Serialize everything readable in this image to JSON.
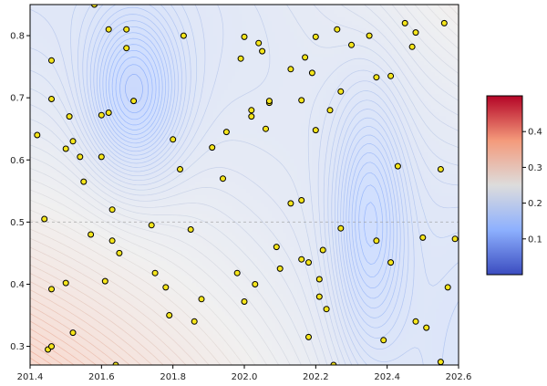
{
  "chart_data": {
    "type": "contour",
    "title": "",
    "xlabel": "",
    "ylabel": "",
    "xlim": [
      201.4,
      202.6
    ],
    "ylim": [
      0.27,
      0.85
    ],
    "x_ticks": [
      201.4,
      201.6,
      201.8,
      202.0,
      202.2,
      202.4,
      202.6
    ],
    "x_tick_labels": [
      "201.4",
      "201.6",
      "201.8",
      "202.0",
      "202.2",
      "202.4",
      "202.6"
    ],
    "y_ticks": [
      0.3,
      0.4,
      0.5,
      0.6,
      0.7,
      0.8
    ],
    "y_tick_labels": [
      "0.3",
      "0.4",
      "0.5",
      "0.6",
      "0.7",
      "0.8"
    ],
    "reference_line_y": 0.5,
    "colormap": "coolwarm",
    "colorbar": {
      "range": [
        0.0,
        0.5
      ],
      "ticks": [
        0.1,
        0.2,
        0.3,
        0.4
      ],
      "tick_labels": [
        "0.1",
        "0.2",
        "0.3",
        "0.4"
      ]
    },
    "field_sources": [
      {
        "x": 201.69,
        "y": 0.702,
        "strength": -0.09,
        "sx": 0.09,
        "sy": 0.09
      },
      {
        "x": 202.35,
        "y": 0.5,
        "strength": -0.07,
        "sx": 0.07,
        "sy": 0.14
      }
    ],
    "scatter_points": [
      [
        201.45,
        0.295
      ],
      [
        201.46,
        0.3
      ],
      [
        201.46,
        0.392
      ],
      [
        201.44,
        0.505
      ],
      [
        201.42,
        0.64
      ],
      [
        201.46,
        0.698
      ],
      [
        201.46,
        0.76
      ],
      [
        201.5,
        0.402
      ],
      [
        201.52,
        0.322
      ],
      [
        201.5,
        0.618
      ],
      [
        201.51,
        0.67
      ],
      [
        201.52,
        0.63
      ],
      [
        201.54,
        0.605
      ],
      [
        201.55,
        0.565
      ],
      [
        201.57,
        0.48
      ],
      [
        201.58,
        0.85
      ],
      [
        201.6,
        0.672
      ],
      [
        201.6,
        0.605
      ],
      [
        201.61,
        0.405
      ],
      [
        201.62,
        0.676
      ],
      [
        201.62,
        0.81
      ],
      [
        201.63,
        0.52
      ],
      [
        201.63,
        0.47
      ],
      [
        201.64,
        0.27
      ],
      [
        201.65,
        0.45
      ],
      [
        201.67,
        0.81
      ],
      [
        201.67,
        0.78
      ],
      [
        201.69,
        0.695
      ],
      [
        201.74,
        0.495
      ],
      [
        201.75,
        0.418
      ],
      [
        201.78,
        0.395
      ],
      [
        201.79,
        0.35
      ],
      [
        201.8,
        0.633
      ],
      [
        201.82,
        0.585
      ],
      [
        201.83,
        0.8
      ],
      [
        201.85,
        0.488
      ],
      [
        201.86,
        0.34
      ],
      [
        201.88,
        0.376
      ],
      [
        201.91,
        0.62
      ],
      [
        201.94,
        0.57
      ],
      [
        201.95,
        0.645
      ],
      [
        201.98,
        0.418
      ],
      [
        201.99,
        0.763
      ],
      [
        202.0,
        0.798
      ],
      [
        202.0,
        0.372
      ],
      [
        202.02,
        0.67
      ],
      [
        202.02,
        0.68
      ],
      [
        202.03,
        0.4
      ],
      [
        202.04,
        0.788
      ],
      [
        202.05,
        0.775
      ],
      [
        202.06,
        0.65
      ],
      [
        202.07,
        0.692
      ],
      [
        202.07,
        0.695
      ],
      [
        202.09,
        0.46
      ],
      [
        202.1,
        0.425
      ],
      [
        202.13,
        0.746
      ],
      [
        202.13,
        0.53
      ],
      [
        202.16,
        0.44
      ],
      [
        202.16,
        0.535
      ],
      [
        202.16,
        0.696
      ],
      [
        202.17,
        0.765
      ],
      [
        202.18,
        0.435
      ],
      [
        202.18,
        0.315
      ],
      [
        202.19,
        0.74
      ],
      [
        202.2,
        0.798
      ],
      [
        202.2,
        0.648
      ],
      [
        202.21,
        0.408
      ],
      [
        202.21,
        0.38
      ],
      [
        202.22,
        0.455
      ],
      [
        202.23,
        0.36
      ],
      [
        202.24,
        0.68
      ],
      [
        202.25,
        0.27
      ],
      [
        202.26,
        0.81
      ],
      [
        202.27,
        0.49
      ],
      [
        202.27,
        0.71
      ],
      [
        202.3,
        0.785
      ],
      [
        202.35,
        0.8
      ],
      [
        202.37,
        0.47
      ],
      [
        202.37,
        0.733
      ],
      [
        202.39,
        0.31
      ],
      [
        202.41,
        0.435
      ],
      [
        202.41,
        0.735
      ],
      [
        202.43,
        0.59
      ],
      [
        202.45,
        0.82
      ],
      [
        202.47,
        0.782
      ],
      [
        202.48,
        0.805
      ],
      [
        202.48,
        0.34
      ],
      [
        202.5,
        0.475
      ],
      [
        202.51,
        0.33
      ],
      [
        202.55,
        0.275
      ],
      [
        202.55,
        0.585
      ],
      [
        202.56,
        0.82
      ],
      [
        202.57,
        0.395
      ],
      [
        202.59,
        0.473
      ]
    ]
  }
}
